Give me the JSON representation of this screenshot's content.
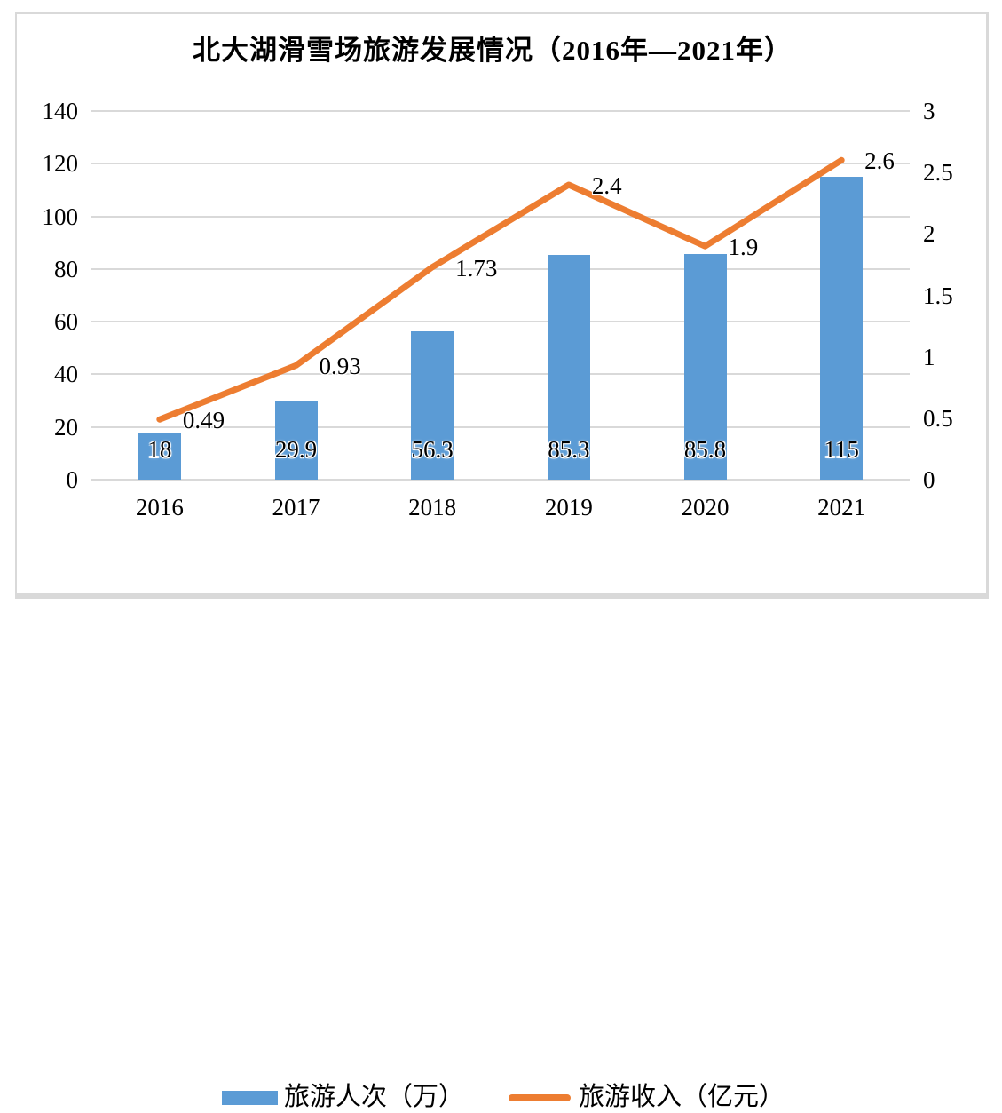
{
  "colors": {
    "bar": "#5B9BD5",
    "line": "#ED7D31",
    "gridline": "#D9D9D9",
    "frame_border": "#D9D9D9",
    "text": "#000000"
  },
  "chart_data": {
    "type": "bar+line combo, dual axis",
    "title": "北大湖滑雪场旅游发展情况（2016年—2021年）",
    "categories": [
      "2016",
      "2017",
      "2018",
      "2019",
      "2020",
      "2021"
    ],
    "series": [
      {
        "name": "旅游人次（万）",
        "type": "bar",
        "axis": "left",
        "color": "#5B9BD5",
        "values": [
          18,
          29.9,
          56.3,
          85.3,
          85.8,
          115
        ],
        "labels": [
          "18",
          "29.9",
          "56.3",
          "85.3",
          "85.8",
          "115"
        ]
      },
      {
        "name": "旅游收入（亿元）",
        "type": "line",
        "axis": "right",
        "color": "#ED7D31",
        "values": [
          0.49,
          0.93,
          1.73,
          2.4,
          1.9,
          2.6
        ],
        "labels": [
          "0.49",
          "0.93",
          "1.73",
          "2.4",
          "1.9",
          "2.6"
        ]
      }
    ],
    "left_axis": {
      "min": 0,
      "max": 140,
      "ticks": [
        "0",
        "20",
        "40",
        "60",
        "80",
        "100",
        "120",
        "140"
      ]
    },
    "right_axis": {
      "min": 0,
      "max": 3,
      "ticks": [
        "0",
        "0.5",
        "1",
        "1.5",
        "2",
        "2.5",
        "3"
      ]
    },
    "grid": true,
    "legend_position": "bottom"
  }
}
